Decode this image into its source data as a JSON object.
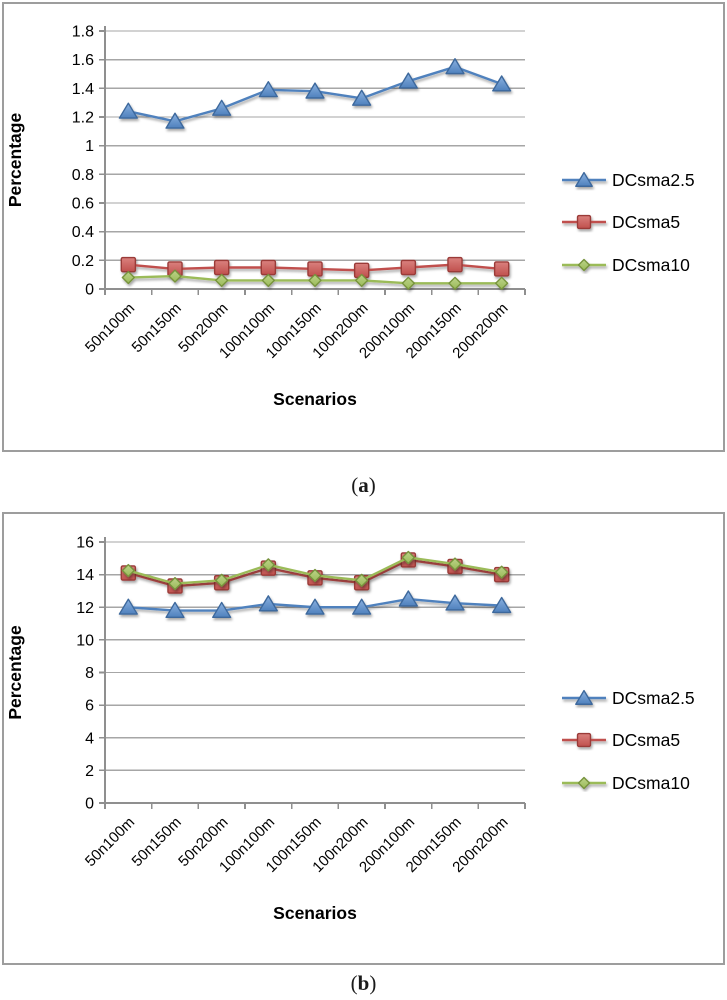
{
  "page": {
    "background": "#ffffff",
    "panel_border_color": "#9d9d9d"
  },
  "figures": [
    {
      "caption_open": "(",
      "caption_letter": "a",
      "caption_close": ")"
    },
    {
      "caption_open": "(",
      "caption_letter": "b",
      "caption_close": ")"
    }
  ],
  "style": {
    "gridline_color": "#a6a6a6",
    "axis_color": "#8f8f8f",
    "text_color": "#000000"
  },
  "chart_data": [
    {
      "type": "line",
      "title": "",
      "xlabel": "Scenarios",
      "ylabel": "Percentage",
      "categories": [
        "50n100m",
        "50n150m",
        "50n200m",
        "100n100m",
        "100n150m",
        "100n200m",
        "200n100m",
        "200n150m",
        "200n200m"
      ],
      "series": [
        {
          "name": "DCsma2.5",
          "marker": "triangle",
          "color": "#4f81bd",
          "stroke": "#3c689c",
          "light": "#8ab1e0",
          "values": [
            1.24,
            1.17,
            1.26,
            1.39,
            1.38,
            1.33,
            1.45,
            1.55,
            1.43
          ]
        },
        {
          "name": "DCsma5",
          "marker": "square",
          "color": "#c0504d",
          "stroke": "#9a3a38",
          "light": "#da817e",
          "values": [
            0.17,
            0.14,
            0.15,
            0.15,
            0.14,
            0.13,
            0.15,
            0.17,
            0.14
          ]
        },
        {
          "name": "DCsma10",
          "marker": "diamond",
          "color": "#9bbb59",
          "stroke": "#77933c",
          "light": "#bcd389",
          "values": [
            0.08,
            0.09,
            0.06,
            0.06,
            0.06,
            0.06,
            0.04,
            0.04,
            0.04
          ]
        }
      ],
      "ylim": [
        0,
        1.8
      ],
      "ytick_step": 0.2,
      "ytick_labels": [
        "0",
        "0.2",
        "0.4",
        "0.6",
        "0.8",
        "1",
        "1.2",
        "1.4",
        "1.6",
        "1.8"
      ],
      "grid": true,
      "legend_position": "right"
    },
    {
      "type": "line",
      "title": "",
      "xlabel": "Scenarios",
      "ylabel": "Percentage",
      "categories": [
        "50n100m",
        "50n150m",
        "50n200m",
        "100n100m",
        "100n150m",
        "100n200m",
        "200n100m",
        "200n150m",
        "200n200m"
      ],
      "series": [
        {
          "name": "DCsma2.5",
          "marker": "triangle",
          "color": "#4f81bd",
          "stroke": "#3c689c",
          "light": "#8ab1e0",
          "values": [
            12.0,
            11.8,
            11.8,
            12.2,
            12.0,
            12.0,
            12.5,
            12.25,
            12.1
          ]
        },
        {
          "name": "DCsma5",
          "marker": "square",
          "color": "#c0504d",
          "stroke": "#9a3a38",
          "light": "#da817e",
          "values": [
            14.1,
            13.3,
            13.5,
            14.4,
            13.8,
            13.5,
            14.9,
            14.5,
            14.0
          ]
        },
        {
          "name": "DCsma10",
          "marker": "diamond",
          "color": "#9bbb59",
          "stroke": "#77933c",
          "light": "#bcd389",
          "values": [
            14.25,
            13.45,
            13.65,
            14.6,
            13.95,
            13.65,
            15.05,
            14.65,
            14.15
          ]
        }
      ],
      "ylim": [
        0,
        16
      ],
      "ytick_step": 2,
      "ytick_labels": [
        "0",
        "2",
        "4",
        "6",
        "8",
        "10",
        "12",
        "14",
        "16"
      ],
      "grid": true,
      "legend_position": "right"
    }
  ]
}
